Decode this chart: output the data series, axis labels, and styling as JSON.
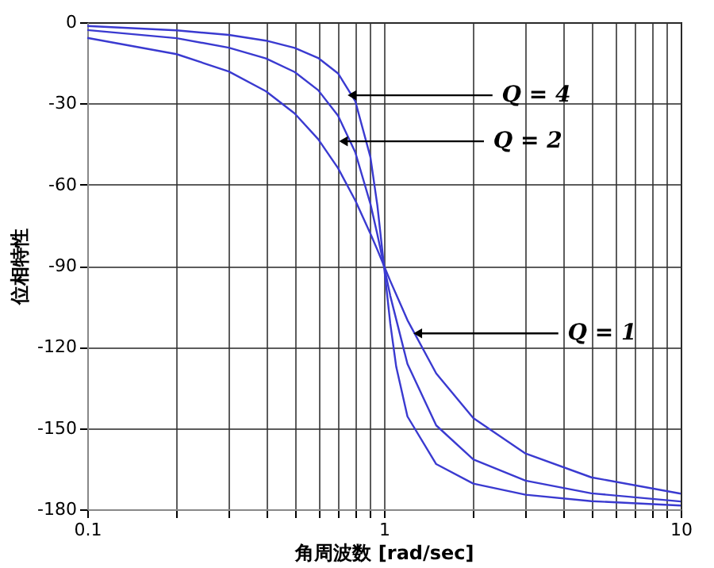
{
  "chart_data": {
    "type": "line",
    "xlabel": "角周波数 [rad/sec]",
    "ylabel": "位相特性",
    "log": "x",
    "grid": true,
    "marker": "none",
    "line_style": "solid",
    "xlim": [
      0.1,
      10
    ],
    "xticks": [
      {
        "value": 0.1,
        "label": "0.1"
      },
      {
        "value": 0.2,
        "label": null
      },
      {
        "value": 0.3,
        "label": null
      },
      {
        "value": 0.4,
        "label": null
      },
      {
        "value": 0.5,
        "label": null
      },
      {
        "value": 0.6,
        "label": null
      },
      {
        "value": 0.7,
        "label": null
      },
      {
        "value": 0.8,
        "label": null
      },
      {
        "value": 0.9,
        "label": null
      },
      1,
      {
        "value": 2,
        "label": null
      },
      {
        "value": 3,
        "label": null
      },
      {
        "value": 4,
        "label": null
      },
      {
        "value": 5,
        "label": null
      },
      {
        "value": 6,
        "label": null
      },
      {
        "value": 7,
        "label": null
      },
      {
        "value": 8,
        "label": null
      },
      {
        "value": 9,
        "label": null
      },
      10
    ],
    "ylim": [
      -180,
      0
    ],
    "yticks": [
      -180,
      -150,
      -120,
      -90,
      -60,
      -30,
      0
    ],
    "series": [
      {
        "color": "#3a3ad0",
        "x": [
          0.1,
          0.2,
          0.3,
          0.4,
          0.5,
          0.6,
          0.7,
          0.8,
          0.9,
          0.95,
          1,
          1.05,
          1.2,
          1.5,
          2,
          3,
          5,
          10
        ],
        "values": [
          -5.8,
          -11.8,
          -18.2,
          -25.5,
          -33.7,
          -43.2,
          -53.9,
          -65.8,
          -78.1,
          -84.1,
          -90,
          -95.6,
          -110.1,
          -129.8,
          -146.3,
          -159.4,
          -168.2,
          -174.2
        ]
      },
      {
        "color": "#3a3ad0",
        "x": [
          0.1,
          0.2,
          0.3,
          0.4,
          0.5,
          0.6,
          0.7,
          0.8,
          0.9,
          0.95,
          1,
          1.05,
          1.2,
          1.5,
          2,
          3,
          5,
          10
        ],
        "values": [
          -2.9,
          -5.9,
          -9.4,
          -13.4,
          -18.4,
          -25.1,
          -34.5,
          -48.0,
          -67.1,
          -78.4,
          -90,
          -101.1,
          -126.3,
          -149.0,
          -161.6,
          -169.4,
          -174.1,
          -177.1
        ]
      },
      {
        "color": "#3a3ad0",
        "x": [
          0.1,
          0.2,
          0.3,
          0.4,
          0.5,
          0.6,
          0.7,
          0.8,
          0.9,
          0.95,
          1,
          1.05,
          1.1,
          1.2,
          1.5,
          2,
          3,
          5,
          10
        ],
        "values": [
          -1.4,
          -3.0,
          -4.7,
          -6.8,
          -9.5,
          -13.2,
          -18.9,
          -29.1,
          -49.8,
          -67.7,
          -90,
          -111.3,
          -127.4,
          -145.7,
          -163.3,
          -170.5,
          -174.6,
          -177.0,
          -178.6
        ]
      }
    ],
    "annotations": [
      {
        "text": "Q = 4",
        "x": 0.78,
        "y": -27
      },
      {
        "text": "Q = 2",
        "x": 0.73,
        "y": -44
      },
      {
        "text": "Q = 1",
        "x": 1.3,
        "y": -115
      }
    ]
  }
}
